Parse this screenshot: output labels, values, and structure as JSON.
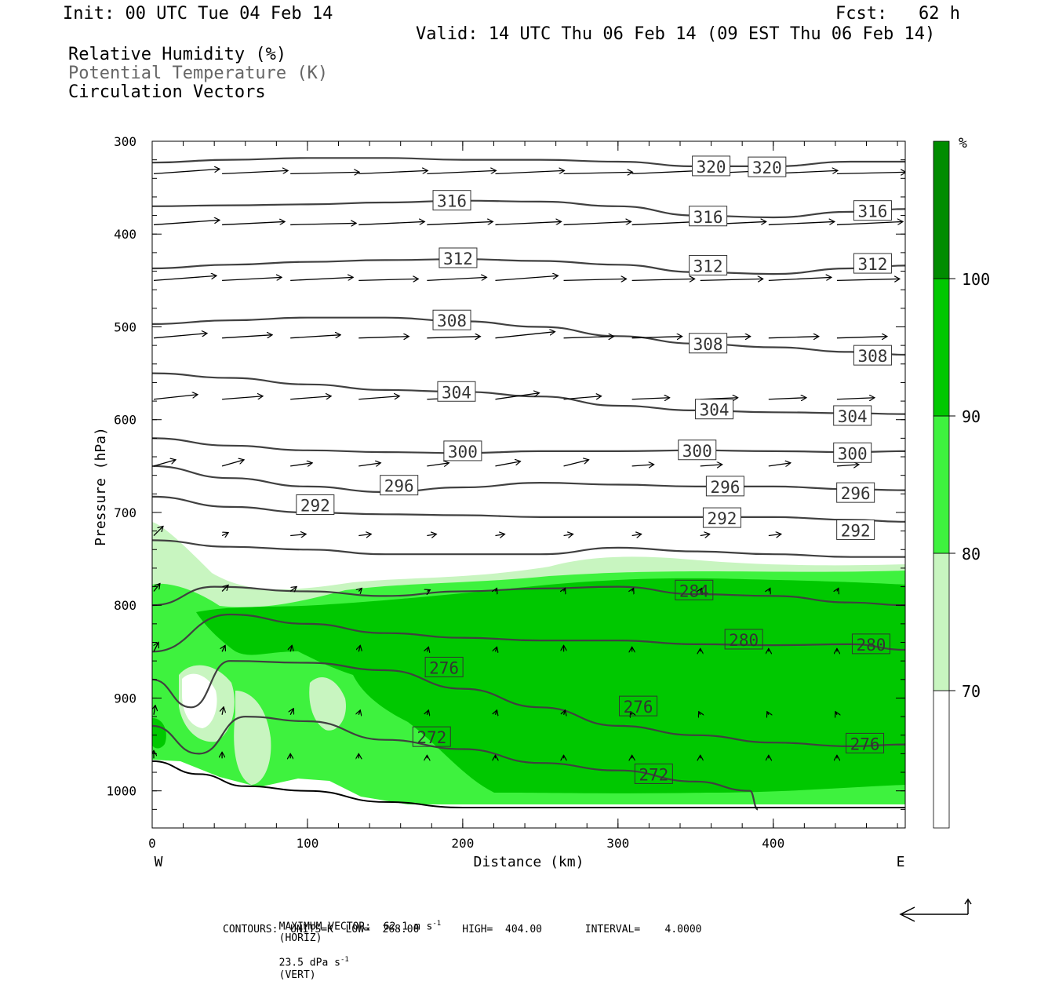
{
  "header": {
    "init": "Init: 00 UTC Tue 04 Feb 14",
    "fcst": "Fcst:   62 h",
    "valid": "Valid: 14 UTC Thu 06 Feb 14 (09 EST Thu 06 Feb 14)",
    "field1": "Relative Humidity (%)",
    "field2": "Potential Temperature (K)",
    "field3": "Circulation Vectors"
  },
  "footer": {
    "line1_a": "MAXIMUM VECTOR:  62.1 m s",
    "line1_b": "(HORIZ)",
    "line1_c": "23.5 dPa s",
    "line1_d": "(VERT)",
    "line2": "CONTOURS:  UNITS=K  LOW=  268.00       HIGH=  404.00       INTERVAL=    4.0000"
  },
  "colors": {
    "rh70": "#c8f5c0",
    "rh80": "#3ef23e",
    "rh90": "#00c800",
    "rh100": "#008c00",
    "contour": "#404040"
  },
  "chart_data": {
    "type": "contour",
    "xlabel": "Distance (km)",
    "ylabel": "Pressure (hPa)",
    "xlim": [
      0,
      485
    ],
    "ylim": [
      1040,
      300
    ],
    "x_ticks": [
      0,
      100,
      200,
      300,
      400
    ],
    "y_ticks": [
      300,
      400,
      500,
      600,
      700,
      800,
      900,
      1000
    ],
    "x_end_labels": [
      "W",
      "E"
    ],
    "colorbar": {
      "unit": "%",
      "levels": [
        70,
        80,
        90,
        100
      ],
      "colors": [
        "#ffffff",
        "#c8f5c0",
        "#3ef23e",
        "#00c800",
        "#008c00"
      ]
    },
    "theta_contours": [
      {
        "level": 320,
        "x": [
          0,
          50,
          100,
          150,
          200,
          250,
          300,
          350,
          400,
          450,
          485
        ],
        "p": [
          323,
          320,
          318,
          318,
          320,
          320,
          322,
          327,
          327,
          322,
          322
        ],
        "labels": [
          {
            "x": 360,
            "p": 327,
            "text": "320"
          },
          {
            "x": 396,
            "p": 328,
            "text": "320"
          }
        ]
      },
      {
        "level": 316,
        "x": [
          0,
          50,
          100,
          150,
          200,
          250,
          300,
          350,
          400,
          450,
          485
        ],
        "p": [
          370,
          369,
          368,
          366,
          364,
          365,
          370,
          380,
          382,
          376,
          373
        ],
        "labels": [
          {
            "x": 193,
            "p": 364,
            "text": "316"
          },
          {
            "x": 358,
            "p": 381,
            "text": "316"
          },
          {
            "x": 464,
            "p": 375,
            "text": "316"
          }
        ]
      },
      {
        "level": 312,
        "x": [
          0,
          50,
          100,
          150,
          200,
          250,
          300,
          350,
          400,
          450,
          485
        ],
        "p": [
          437,
          433,
          430,
          428,
          427,
          429,
          433,
          441,
          443,
          437,
          434
        ],
        "labels": [
          {
            "x": 197,
            "p": 426,
            "text": "312"
          },
          {
            "x": 358,
            "p": 434,
            "text": "312"
          },
          {
            "x": 464,
            "p": 432,
            "text": "312"
          }
        ]
      },
      {
        "level": 308,
        "x": [
          0,
          50,
          100,
          150,
          200,
          250,
          300,
          350,
          400,
          450,
          485
        ],
        "p": [
          497,
          493,
          490,
          490,
          494,
          500,
          510,
          518,
          522,
          527,
          530
        ],
        "labels": [
          {
            "x": 193,
            "p": 493,
            "text": "308"
          },
          {
            "x": 358,
            "p": 518,
            "text": "308"
          },
          {
            "x": 464,
            "p": 531,
            "text": "308"
          }
        ]
      },
      {
        "level": 304,
        "x": [
          0,
          50,
          100,
          150,
          200,
          250,
          300,
          350,
          400,
          450,
          485
        ],
        "p": [
          550,
          555,
          562,
          568,
          570,
          575,
          585,
          590,
          592,
          593,
          594
        ],
        "labels": [
          {
            "x": 196,
            "p": 570,
            "text": "304"
          },
          {
            "x": 362,
            "p": 589,
            "text": "304"
          },
          {
            "x": 451,
            "p": 596,
            "text": "304"
          }
        ]
      },
      {
        "level": 300,
        "x": [
          0,
          50,
          100,
          150,
          200,
          250,
          300,
          350,
          400,
          450,
          485
        ],
        "p": [
          620,
          628,
          633,
          635,
          636,
          634,
          634,
          633,
          634,
          635,
          634
        ],
        "labels": [
          {
            "x": 200,
            "p": 634,
            "text": "300"
          },
          {
            "x": 351,
            "p": 633,
            "text": "300"
          },
          {
            "x": 451,
            "p": 636,
            "text": "300"
          }
        ]
      },
      {
        "level": 296,
        "x": [
          0,
          50,
          100,
          150,
          200,
          250,
          300,
          350,
          400,
          450,
          485
        ],
        "p": [
          650,
          663,
          672,
          678,
          673,
          668,
          670,
          672,
          672,
          675,
          676
        ],
        "labels": [
          {
            "x": 159,
            "p": 671,
            "text": "296"
          },
          {
            "x": 369,
            "p": 672,
            "text": "296"
          },
          {
            "x": 453,
            "p": 679,
            "text": "296"
          }
        ]
      },
      {
        "level": 292,
        "x": [
          0,
          50,
          100,
          150,
          200,
          250,
          300,
          350,
          400,
          450,
          485
        ],
        "p": [
          683,
          694,
          700,
          702,
          703,
          705,
          705,
          705,
          705,
          708,
          710
        ],
        "labels": [
          {
            "x": 105,
            "p": 692,
            "text": "292"
          },
          {
            "x": 367,
            "p": 706,
            "text": "292"
          },
          {
            "x": 453,
            "p": 719,
            "text": "292"
          }
        ]
      },
      {
        "level": 288,
        "x": [
          0,
          50,
          100,
          150,
          200,
          250,
          300,
          350,
          400,
          450,
          485
        ],
        "p": [
          730,
          737,
          740,
          745,
          745,
          745,
          738,
          742,
          745,
          748,
          748
        ],
        "labels": []
      },
      {
        "level": 284,
        "x": [
          0,
          40,
          100,
          150,
          200,
          250,
          300,
          350,
          400,
          450,
          485
        ],
        "p": [
          800,
          780,
          785,
          790,
          785,
          782,
          780,
          788,
          790,
          797,
          800
        ],
        "labels": [
          {
            "x": 349,
            "p": 784,
            "text": "284"
          }
        ]
      },
      {
        "level": 280,
        "x": [
          0,
          50,
          100,
          150,
          200,
          250,
          300,
          350,
          400,
          450,
          485
        ],
        "p": [
          850,
          810,
          820,
          830,
          835,
          838,
          838,
          842,
          843,
          842,
          848
        ],
        "labels": [
          {
            "x": 381,
            "p": 837,
            "text": "280"
          },
          {
            "x": 463,
            "p": 842,
            "text": "280"
          }
        ]
      },
      {
        "level": 276,
        "x": [
          0,
          25,
          50,
          100,
          150,
          200,
          250,
          300,
          350,
          400,
          450,
          485
        ],
        "p": [
          880,
          910,
          860,
          862,
          870,
          890,
          910,
          930,
          940,
          948,
          952,
          950
        ],
        "labels": [
          {
            "x": 188,
            "p": 867,
            "text": "276"
          },
          {
            "x": 313,
            "p": 909,
            "text": "276"
          },
          {
            "x": 459,
            "p": 949,
            "text": "276"
          }
        ]
      },
      {
        "level": 272,
        "x": [
          0,
          30,
          60,
          100,
          150,
          200,
          250,
          300,
          350,
          385,
          390
        ],
        "p": [
          930,
          960,
          920,
          925,
          945,
          955,
          970,
          978,
          990,
          1000,
          1020
        ],
        "labels": [
          {
            "x": 180,
            "p": 942,
            "text": "272"
          },
          {
            "x": 323,
            "p": 982,
            "text": "272"
          }
        ]
      }
    ],
    "surface_pressure": {
      "x": [
        0,
        30,
        60,
        100,
        150,
        200,
        250,
        300,
        350,
        400,
        450,
        485
      ],
      "p": [
        968,
        982,
        995,
        1000,
        1012,
        1018,
        1018,
        1018,
        1018,
        1018,
        1018,
        1018
      ]
    },
    "vectors": {
      "levels_p": [
        335,
        390,
        450,
        512,
        578,
        650,
        725,
        785,
        850,
        918,
        965
      ],
      "x": [
        0,
        44,
        88,
        132,
        176,
        220,
        264,
        308,
        352,
        396,
        440
      ],
      "rows": [
        [
          [
            42,
            -3
          ],
          [
            42,
            -2
          ],
          [
            44,
            -1
          ],
          [
            44,
            -2
          ],
          [
            44,
            -2
          ],
          [
            44,
            -2
          ],
          [
            44,
            -1
          ],
          [
            44,
            -2
          ],
          [
            44,
            -2
          ],
          [
            44,
            -2
          ],
          [
            44,
            -1
          ]
        ],
        [
          [
            42,
            -3
          ],
          [
            40,
            -2
          ],
          [
            42,
            -1
          ],
          [
            42,
            -2
          ],
          [
            42,
            -2
          ],
          [
            42,
            -2
          ],
          [
            43,
            -2
          ],
          [
            42,
            -2
          ],
          [
            42,
            -2
          ],
          [
            42,
            -2
          ],
          [
            42,
            -2
          ]
        ],
        [
          [
            40,
            -3
          ],
          [
            38,
            -2
          ],
          [
            40,
            -2
          ],
          [
            38,
            -1
          ],
          [
            38,
            -2
          ],
          [
            40,
            -3
          ],
          [
            40,
            -1
          ],
          [
            40,
            -1
          ],
          [
            40,
            -1
          ],
          [
            40,
            -2
          ],
          [
            40,
            -1
          ]
        ],
        [
          [
            34,
            -3
          ],
          [
            32,
            -2
          ],
          [
            32,
            -2
          ],
          [
            32,
            -1
          ],
          [
            34,
            -1
          ],
          [
            38,
            -4
          ],
          [
            32,
            -1
          ],
          [
            32,
            -1
          ],
          [
            32,
            -1
          ],
          [
            32,
            -1
          ],
          [
            32,
            -1
          ]
        ],
        [
          [
            28,
            -3
          ],
          [
            26,
            -2
          ],
          [
            26,
            -2
          ],
          [
            26,
            -2
          ],
          [
            24,
            -1
          ],
          [
            28,
            -4
          ],
          [
            24,
            -2
          ],
          [
            24,
            -1
          ],
          [
            24,
            -1
          ],
          [
            24,
            -1
          ],
          [
            24,
            -1
          ]
        ],
        [
          [
            14,
            -4
          ],
          [
            14,
            -4
          ],
          [
            14,
            -2
          ],
          [
            14,
            -2
          ],
          [
            14,
            -2
          ],
          [
            16,
            -3
          ],
          [
            16,
            -4
          ],
          [
            14,
            -1
          ],
          [
            14,
            -1
          ],
          [
            14,
            -2
          ],
          [
            14,
            -1
          ]
        ],
        [
          [
            6,
            -6
          ],
          [
            4,
            -2
          ],
          [
            10,
            -1
          ],
          [
            8,
            -1
          ],
          [
            6,
            -1
          ],
          [
            6,
            -1
          ],
          [
            6,
            -1
          ],
          [
            6,
            -1
          ],
          [
            6,
            -1
          ],
          [
            8,
            -1
          ],
          [
            8,
            -1
          ]
        ],
        [
          [
            4,
            -5
          ],
          [
            4,
            -4
          ],
          [
            4,
            -3
          ],
          [
            2,
            -2
          ],
          [
            2,
            -1
          ],
          [
            1,
            -2
          ],
          [
            1,
            -2
          ],
          [
            1,
            -2
          ],
          [
            1,
            -2
          ],
          [
            1,
            -2
          ],
          [
            1,
            -2
          ]
        ],
        [
          [
            3,
            -6
          ],
          [
            2,
            -4
          ],
          [
            1,
            -4
          ],
          [
            1,
            -4
          ],
          [
            1,
            -3
          ],
          [
            1,
            -3
          ],
          [
            0,
            -4
          ],
          [
            0,
            -3
          ],
          [
            0,
            -2
          ],
          [
            0,
            -2
          ],
          [
            0,
            -2
          ]
        ],
        [
          [
            1,
            -6
          ],
          [
            1,
            -5
          ],
          [
            2,
            -4
          ],
          [
            1,
            -3
          ],
          [
            1,
            -3
          ],
          [
            1,
            -3
          ],
          [
            1,
            -3
          ],
          [
            -1,
            -2
          ],
          [
            -1,
            -2
          ],
          [
            -1,
            -2
          ],
          [
            -1,
            -2
          ]
        ],
        [
          [
            0,
            -5
          ],
          [
            0,
            -4
          ],
          [
            0,
            -3
          ],
          [
            0,
            -3
          ],
          [
            0,
            -2
          ],
          [
            0,
            -2
          ],
          [
            0,
            -2
          ],
          [
            0,
            -2
          ],
          [
            0,
            -2
          ],
          [
            0,
            -2
          ],
          [
            0,
            -2
          ]
        ]
      ]
    }
  }
}
